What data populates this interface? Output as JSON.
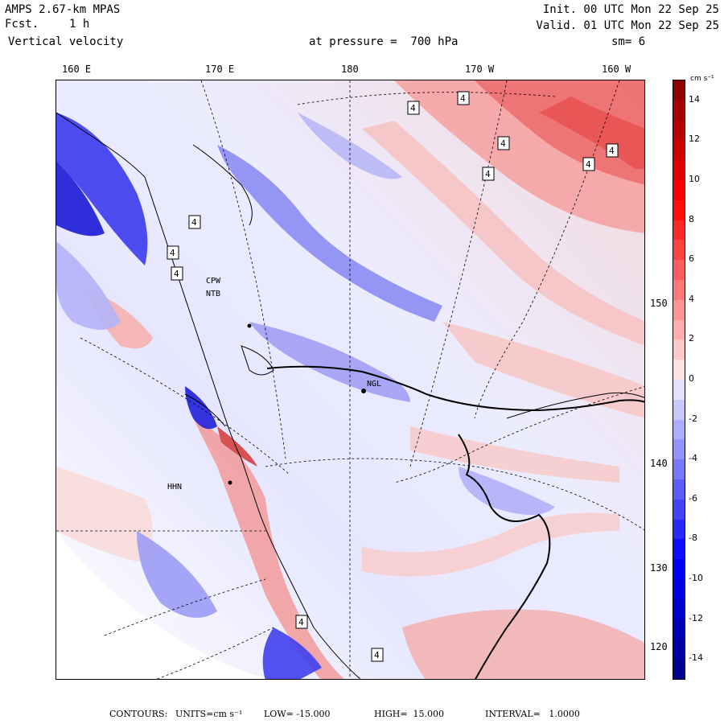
{
  "header": {
    "model": "AMPS 2.67-km MPAS",
    "fcst_label": "Fcst.",
    "fcst_value": "1 h",
    "variable": "Vertical velocity",
    "level": "at pressure =  700 hPa",
    "init": "Init. 00 UTC Mon 22 Sep 25",
    "valid": "Valid. 01 UTC Mon 22 Sep 25",
    "smoothing": "sm= 6"
  },
  "map": {
    "longitude_labels": [
      "160 E",
      "170 E",
      "180",
      "170 W",
      "160 W"
    ],
    "latitude_labels": [
      "150 W",
      "140 W",
      "130 W",
      "120 W"
    ],
    "station_labels": [
      "CPW",
      "NTB",
      "NGL",
      "HHN"
    ],
    "contour_label": "4",
    "colors": {
      "strong_positive": "#8b0000",
      "positive": "#ff0000",
      "weak_positive": "#ffc8c8",
      "neutral": "#ffffff",
      "weak_negative": "#c8c8ff",
      "negative": "#0000ff",
      "strong_negative": "#00008b"
    }
  },
  "colorbar": {
    "unit": "cm s⁻¹",
    "ticks": [
      "14",
      "12",
      "10",
      "8",
      "6",
      "4",
      "2",
      "0",
      "-2",
      "-4",
      "-6",
      "-8",
      "-10",
      "-12",
      "-14"
    ],
    "min": -15,
    "max": 15
  },
  "footer": {
    "contours_label": "CONTOURS:",
    "units": "UNITS=cm s⁻¹",
    "low": "LOW= -15.000",
    "high": "HIGH=  15.000",
    "interval": "INTERVAL=   1.0000"
  }
}
